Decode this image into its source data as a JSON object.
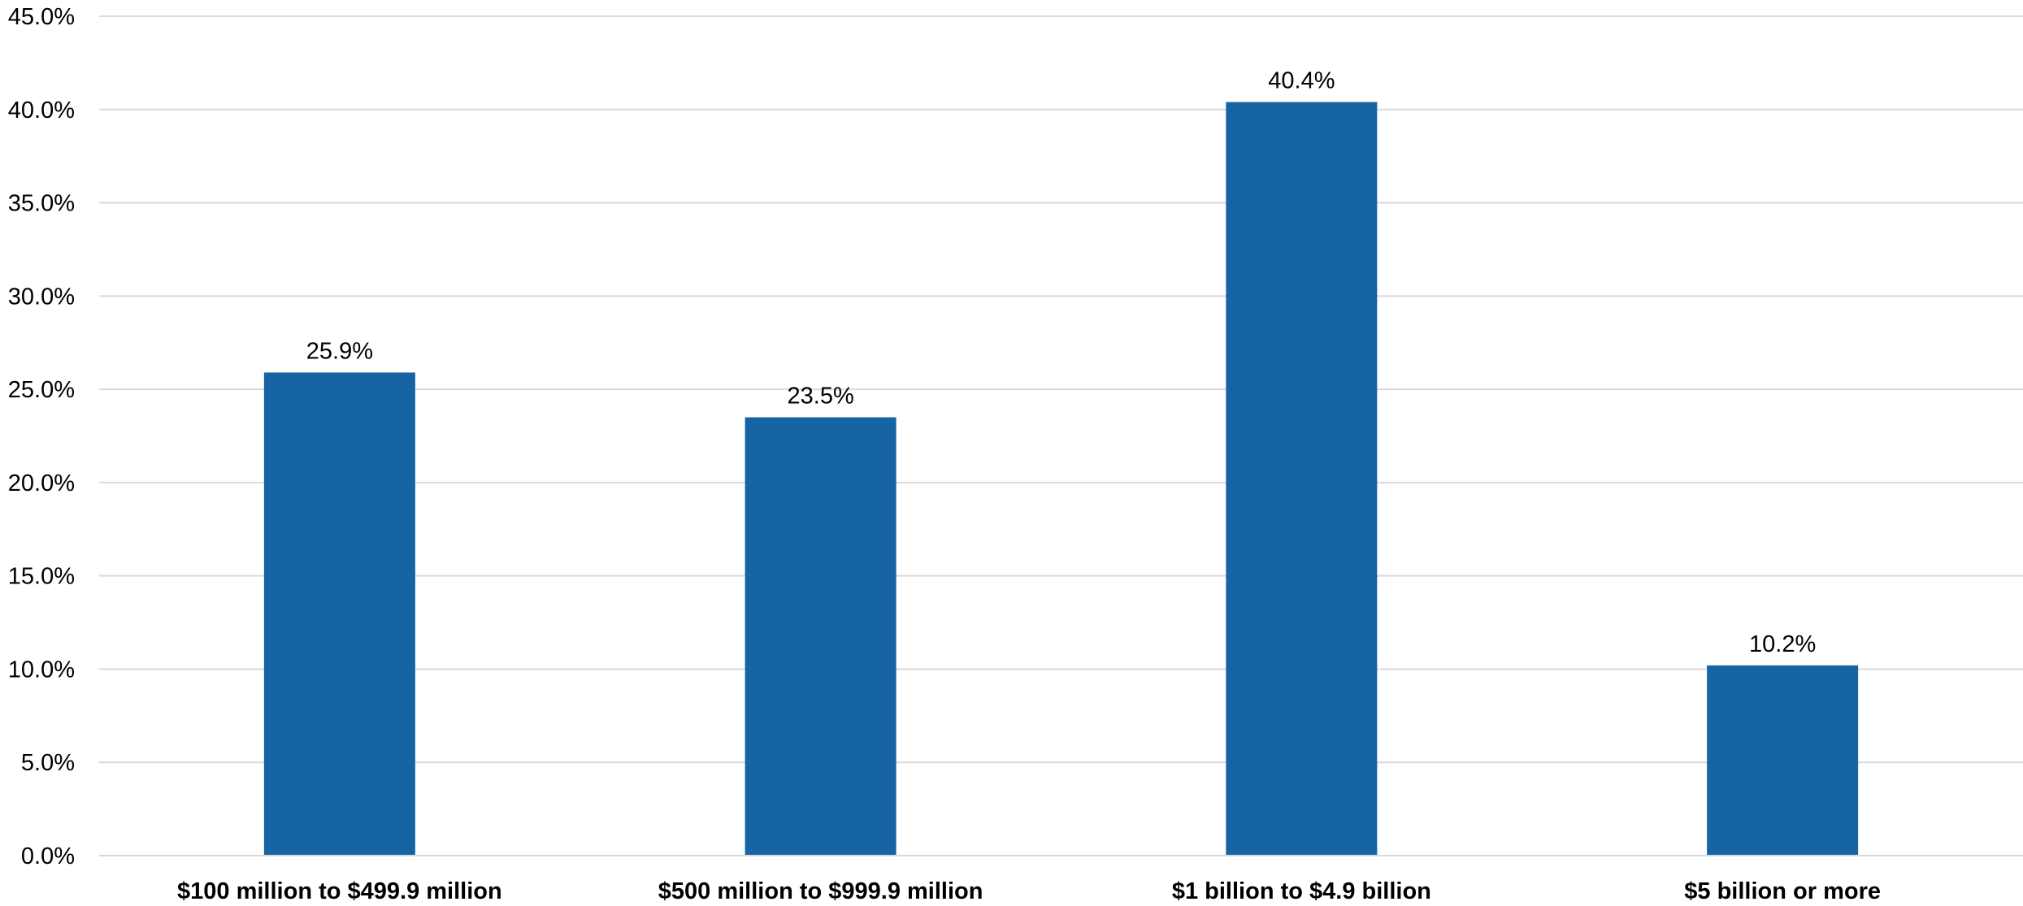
{
  "chart_data": {
    "type": "bar",
    "categories": [
      "$100 million to $499.9 million",
      "$500 million to $999.9 million",
      "$1 billion to $4.9 billion",
      "$5 billion or more"
    ],
    "values": [
      25.9,
      23.5,
      40.4,
      10.2
    ],
    "data_labels": [
      "25.9%",
      "23.5%",
      "40.4%",
      "10.2%"
    ],
    "title": "",
    "xlabel": "",
    "ylabel": "",
    "ylim": [
      0,
      45
    ],
    "yticks": [
      0,
      5,
      10,
      15,
      20,
      25,
      30,
      35,
      40,
      45
    ],
    "ytick_labels": [
      "0.0%",
      "5.0%",
      "10.0%",
      "15.0%",
      "20.0%",
      "25.0%",
      "30.0%",
      "35.0%",
      "40.0%",
      "45.0%"
    ],
    "grid": true,
    "legend": "none",
    "bar_color": "#1764a4",
    "grid_color": "#d9d9d9"
  }
}
